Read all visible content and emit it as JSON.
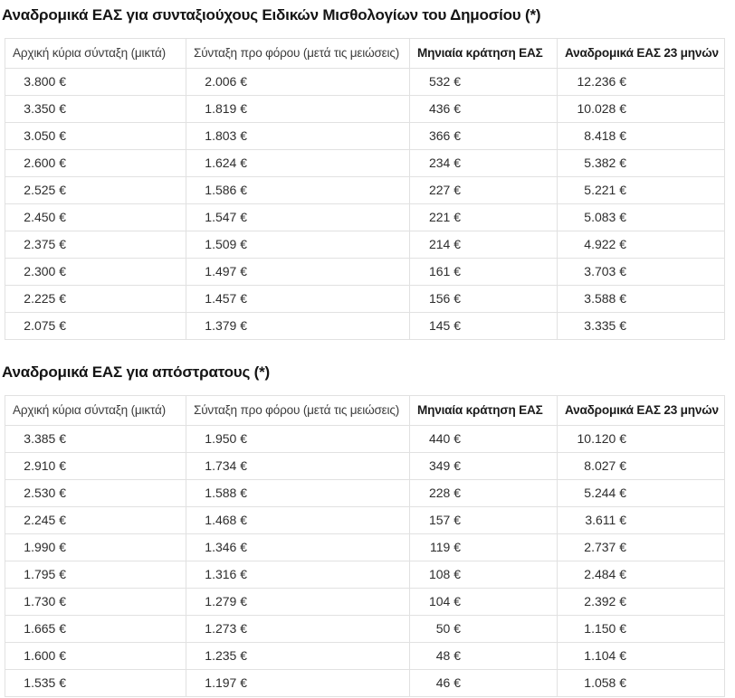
{
  "page": {
    "tables": [
      {
        "title": "Αναδρομικά ΕΑΣ για συνταξιούχους Ειδικών Μισθολογίων του Δημοσίου (*)",
        "headers": [
          "Αρχική κύρια σύνταξη (μικτά)",
          "Σύνταξη προ φόρου (μετά τις μειώσεις)",
          "Μηνιαία κράτηση ΕΑΣ",
          "Αναδρομικά ΕΑΣ 23 μηνών"
        ],
        "rows": [
          [
            "3.800 €",
            "2.006 €",
            "532 €",
            "12.236 €"
          ],
          [
            "3.350 €",
            "1.819 €",
            "436 €",
            "10.028 €"
          ],
          [
            "3.050 €",
            "1.803 €",
            "366 €",
            "8.418 €"
          ],
          [
            "2.600 €",
            "1.624 €",
            "234 €",
            "5.382 €"
          ],
          [
            "2.525 €",
            "1.586 €",
            "227 €",
            "5.221 €"
          ],
          [
            "2.450 €",
            "1.547 €",
            "221 €",
            "5.083 €"
          ],
          [
            "2.375 €",
            "1.509 €",
            "214 €",
            "4.922 €"
          ],
          [
            "2.300 €",
            "1.497 €",
            "161 €",
            "3.703 €"
          ],
          [
            "2.225 €",
            "1.457 €",
            "156 €",
            "3.588 €"
          ],
          [
            "2.075 €",
            "1.379 €",
            "145 €",
            "3.335 €"
          ]
        ]
      },
      {
        "title": "Αναδρομικά ΕΑΣ για απόστρατους (*)",
        "headers": [
          "Αρχική κύρια σύνταξη (μικτά)",
          "Σύνταξη προ φόρου (μετά τις μειώσεις)",
          "Μηνιαία κράτηση ΕΑΣ",
          "Αναδρομικά ΕΑΣ 23 μηνών"
        ],
        "rows": [
          [
            "3.385 €",
            "1.950 €",
            "440 €",
            "10.120 €"
          ],
          [
            "2.910 €",
            "1.734 €",
            "349 €",
            "8.027 €"
          ],
          [
            "2.530 €",
            "1.588 €",
            "228 €",
            "5.244 €"
          ],
          [
            "2.245 €",
            "1.468 €",
            "157 €",
            "3.611 €"
          ],
          [
            "1.990 €",
            "1.346 €",
            "119 €",
            "2.737 €"
          ],
          [
            "1.795 €",
            "1.316 €",
            "108 €",
            "2.484 €"
          ],
          [
            "1.730 €",
            "1.279 €",
            "104 €",
            "2.392 €"
          ],
          [
            "1.665 €",
            "1.273 €",
            "50 €",
            "1.150 €"
          ],
          [
            "1.600 €",
            "1.235 €",
            "48 €",
            "1.104 €"
          ],
          [
            "1.535 €",
            "1.197 €",
            "46 €",
            "1.058 €"
          ]
        ]
      }
    ]
  },
  "colors": {
    "heading_text": "#141414",
    "header_text": "#3d3d3d",
    "header_text_bold": "#1b1b1b",
    "cell_text": "#2d2d2d",
    "border": "#e1e1e1",
    "background": "#ffffff"
  }
}
